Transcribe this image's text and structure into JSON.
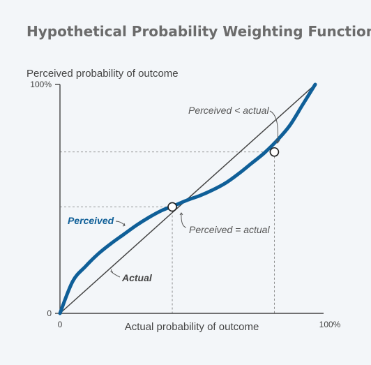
{
  "chart_data": {
    "type": "line",
    "title": "Hypothetical Probability Weighting Function",
    "xlabel": "Actual probability of outcome",
    "ylabel": "Perceived probability of outcome",
    "xlim": [
      0,
      100
    ],
    "ylim": [
      0,
      100
    ],
    "x_ticks": [
      "0",
      "100%"
    ],
    "y_ticks": [
      "0",
      "100%"
    ],
    "series": [
      {
        "name": "Actual",
        "color": "#444444",
        "points": [
          [
            0,
            0
          ],
          [
            100,
            100
          ]
        ]
      },
      {
        "name": "Perceived",
        "color": "#0f5f98",
        "points": [
          [
            0,
            0
          ],
          [
            5,
            14
          ],
          [
            10,
            20.5
          ],
          [
            15,
            26
          ],
          [
            20,
            30.5
          ],
          [
            25,
            34.5
          ],
          [
            30,
            38.5
          ],
          [
            35,
            42
          ],
          [
            40,
            45
          ],
          [
            45,
            47.2
          ],
          [
            50,
            49.5
          ],
          [
            55,
            51.5
          ],
          [
            60,
            54
          ],
          [
            65,
            57
          ],
          [
            70,
            61
          ],
          [
            75,
            65.5
          ],
          [
            80,
            70
          ],
          [
            85,
            75.5
          ],
          [
            90,
            82
          ],
          [
            95,
            91
          ],
          [
            100,
            100
          ]
        ]
      }
    ],
    "markers": [
      {
        "x": 44,
        "y": 46.5,
        "label": "Perceived = actual"
      },
      {
        "x": 84,
        "y": 70.5,
        "label": "Perceived < actual"
      }
    ],
    "annotations": {
      "perceived": "Perceived",
      "actual": "Actual",
      "equal": "Perceived = actual",
      "less": "Perceived < actual"
    }
  }
}
